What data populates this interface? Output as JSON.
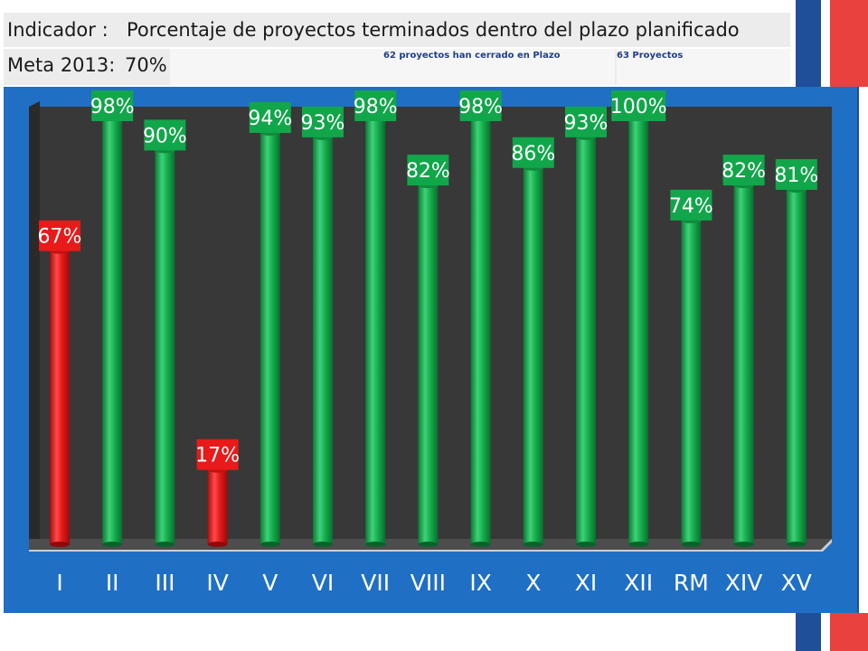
{
  "header": {
    "indicator_label": "Indicador :",
    "indicator_value": "Porcentaje de proyectos terminados dentro del plazo planificado",
    "goal_label": "Meta 2013:",
    "goal_value": "70%",
    "note_closed": "62 proyectos han cerrado en Plazo",
    "note_total": "63 Proyectos"
  },
  "colors": {
    "above_goal": "#11a64a",
    "below_goal": "#e81a1a",
    "panel_bg": "#1f6fc5",
    "plot_bg": "#3a3a3a",
    "accent_red": "#e8413e",
    "accent_blue": "#1f4f99"
  },
  "chart_data": {
    "type": "bar",
    "title": "",
    "xlabel": "",
    "ylabel": "",
    "ylim": [
      0,
      100
    ],
    "goal": 70,
    "categories": [
      "I",
      "II",
      "III",
      "IV",
      "V",
      "VI",
      "VII",
      "VIII",
      "IX",
      "X",
      "XI",
      "XII",
      "RM",
      "XIV",
      "XV"
    ],
    "values": [
      67,
      98,
      90,
      17,
      94,
      93,
      98,
      82,
      98,
      86,
      93,
      100,
      74,
      82,
      81
    ],
    "data_labels": [
      "67%",
      "98%",
      "90%",
      "17%",
      "94%",
      "93%",
      "98%",
      "82%",
      "98%",
      "86%",
      "93%",
      "100%",
      "74%",
      "82%",
      "81%"
    ],
    "grid": false,
    "legend": "none"
  }
}
